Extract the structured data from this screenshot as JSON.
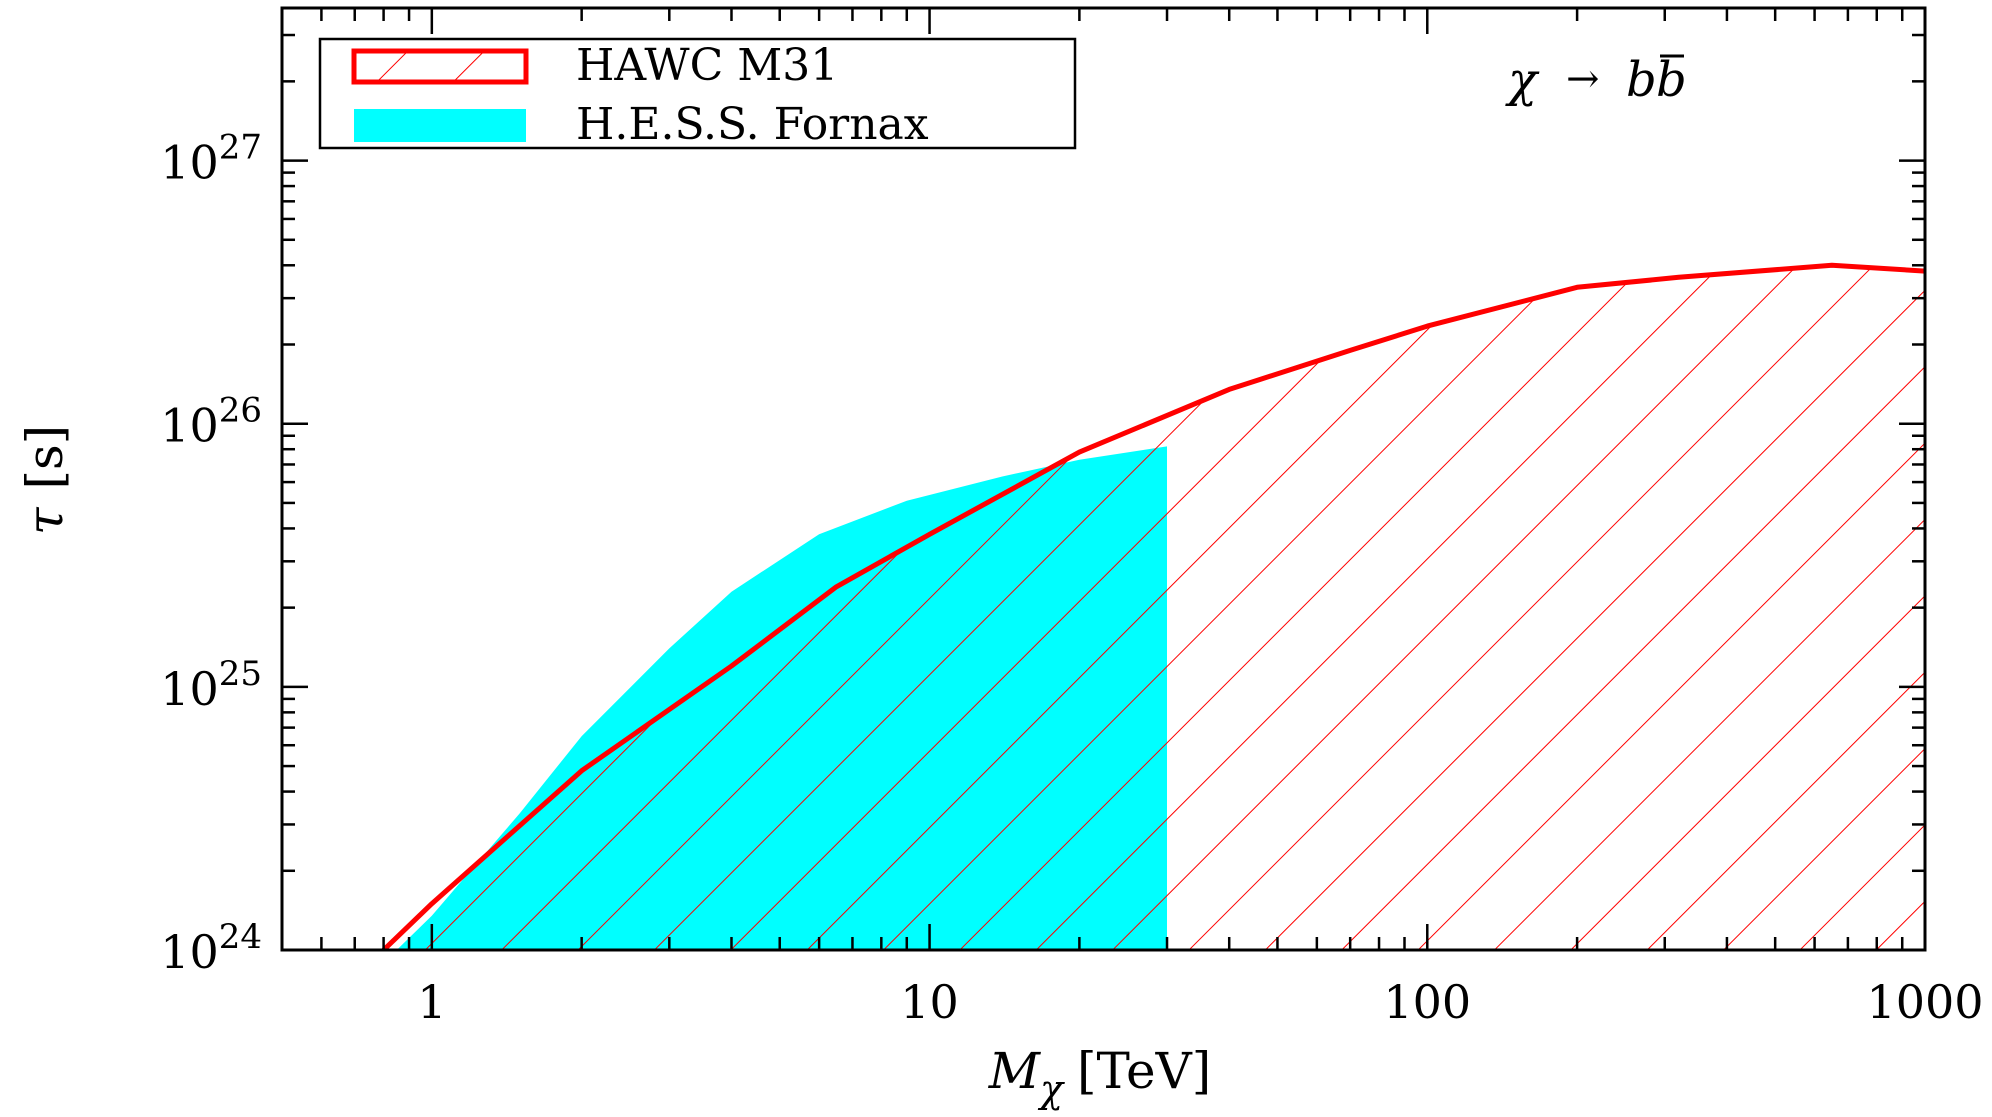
{
  "chart_data": {
    "type": "area",
    "xlabel": "M",
    "xlabel_subscript": "χ",
    "xlabel_unit": "[TeV]",
    "ylabel": "τ [s]",
    "x_scale": "log",
    "y_scale": "log",
    "xlim": [
      0.5,
      1000
    ],
    "ylim": [
      1e+24,
      3.8e+27
    ],
    "grid": false,
    "legend_position": "top-left",
    "annotation": {
      "chi": "χ",
      "arrow": "→",
      "b": "b",
      "bbar": "b"
    },
    "x_ticks": [
      {
        "value": 1,
        "label": "1"
      },
      {
        "value": 10,
        "label": "10"
      },
      {
        "value": 100,
        "label": "100"
      },
      {
        "value": 1000,
        "label": "1000"
      }
    ],
    "y_ticks": [
      {
        "value": 1e+24,
        "base": "10",
        "exp": "24"
      },
      {
        "value": 1e+25,
        "base": "10",
        "exp": "25"
      },
      {
        "value": 1e+26,
        "base": "10",
        "exp": "26"
      },
      {
        "value": 1e+27,
        "base": "10",
        "exp": "27"
      }
    ],
    "series": [
      {
        "name": "HAWC M31",
        "style": "hatched",
        "color": "#ff0000",
        "x": [
          0.8,
          1.0,
          2.0,
          4.0,
          6.5,
          10,
          20,
          40,
          70,
          100,
          200,
          320,
          650,
          1000
        ],
        "y": [
          1e+24,
          1.5e+24,
          4.8e+24,
          1.2e+25,
          2.4e+25,
          3.8e+25,
          7.8e+25,
          1.35e+26,
          1.9e+26,
          2.35e+26,
          3.3e+26,
          3.6e+26,
          4e+26,
          3.8e+26
        ]
      },
      {
        "name": "H.E.S.S. Fornax",
        "style": "filled",
        "color": "#00ffff",
        "x": [
          0.85,
          1.0,
          1.5,
          2.0,
          3.0,
          4.0,
          6.0,
          9.0,
          14,
          20,
          30
        ],
        "y": [
          1e+24,
          1.35e+24,
          3.3e+24,
          6.5e+24,
          1.4e+25,
          2.3e+25,
          3.8e+25,
          5.1e+25,
          6.3e+25,
          7.3e+25,
          8.2e+25
        ]
      }
    ]
  }
}
